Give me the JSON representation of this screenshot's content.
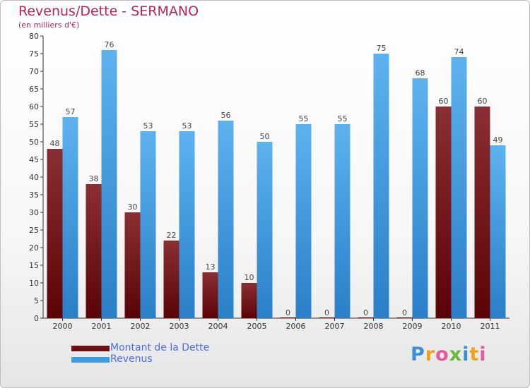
{
  "header": {
    "title": "Revenus/Dette - SERMANO",
    "subtitle": "(en milliers d'€)"
  },
  "legend": {
    "items": [
      {
        "label": "Montant de la Dette",
        "color": "#6e0f14"
      },
      {
        "label": "Revenus",
        "color": "#3d9be6"
      }
    ]
  },
  "logo": {
    "text": "Proxiti"
  },
  "colors": {
    "debt_top": "#8a2f33",
    "debt_bottom": "#5a0306",
    "rev_top": "#5db2ee",
    "rev_bottom": "#2a7fc8",
    "axis": "#333333",
    "grid": "#d8d8d8"
  },
  "chart_data": {
    "type": "bar",
    "title": "Revenus/Dette - SERMANO",
    "subtitle": "(en milliers d'€)",
    "categories": [
      "2000",
      "2001",
      "2002",
      "2003",
      "2004",
      "2005",
      "2006",
      "2007",
      "2008",
      "2009",
      "2010",
      "2011"
    ],
    "series": [
      {
        "name": "Montant de la Dette",
        "values": [
          48,
          38,
          30,
          22,
          13,
          10,
          0,
          0,
          0,
          0,
          60,
          60
        ]
      },
      {
        "name": "Revenus",
        "values": [
          57,
          76,
          53,
          53,
          56,
          50,
          55,
          55,
          75,
          68,
          74,
          49
        ]
      }
    ],
    "ylim": [
      0,
      80
    ],
    "ytick_step": 5,
    "grid": false,
    "legend": "bottom-left",
    "data_labels": true
  }
}
